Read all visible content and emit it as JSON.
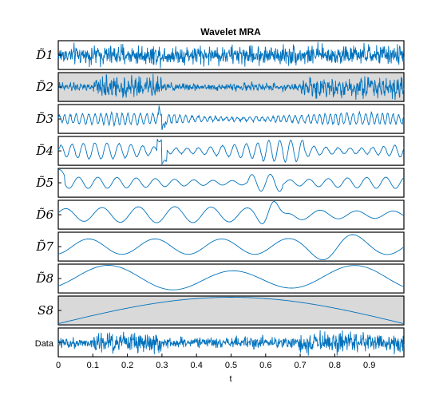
{
  "chart_data": {
    "type": "line",
    "title": "Wavelet MRA",
    "xlabel": "t",
    "xlim": [
      0,
      1
    ],
    "xticks": [
      "0",
      "0.1",
      "0.2",
      "0.3",
      "0.4",
      "0.5",
      "0.6",
      "0.7",
      "0.8",
      "0.9"
    ],
    "line_color": "#0072bd",
    "shade_color": "#d9d9d9",
    "panels": [
      {
        "label": "D̃1",
        "shaded": false,
        "description": "highest-frequency detail, uniform noise-like oscillation"
      },
      {
        "label": "D̃2",
        "shaded": true,
        "description": "bursts of high amplitude at t≈0.1–0.3 and t≈0.7–1.0"
      },
      {
        "label": "D̃3",
        "shaded": false,
        "description": "oscillation with spike near t≈0.3"
      },
      {
        "label": "D̃4",
        "shaded": false,
        "description": "oscillation with larger bursts near t≈0.3 and t≈0.65"
      },
      {
        "label": "D̃5",
        "shaded": false,
        "description": "mid-frequency oscillation, spike near t≈0.6"
      },
      {
        "label": "D̃6",
        "shaded": false,
        "description": "low-mid frequency, largest swing near t≈0.62"
      },
      {
        "label": "D̃7",
        "shaded": false,
        "description": "slow oscillation, ~6 cycles"
      },
      {
        "label": "D̃8",
        "shaded": false,
        "description": "very slow oscillation, peaks near t≈0.2, 0.55, 0.8"
      },
      {
        "label": "S8",
        "shaded": true,
        "description": "smooth approximation: rises from ~0 at t=0 to max at t≈0.5 and back to ~0 at t=1"
      },
      {
        "label": "Data",
        "shaded": false,
        "description": "original signal, noisy with bursts near t≈0.1–0.3 and t≈0.7–1.0"
      }
    ]
  }
}
